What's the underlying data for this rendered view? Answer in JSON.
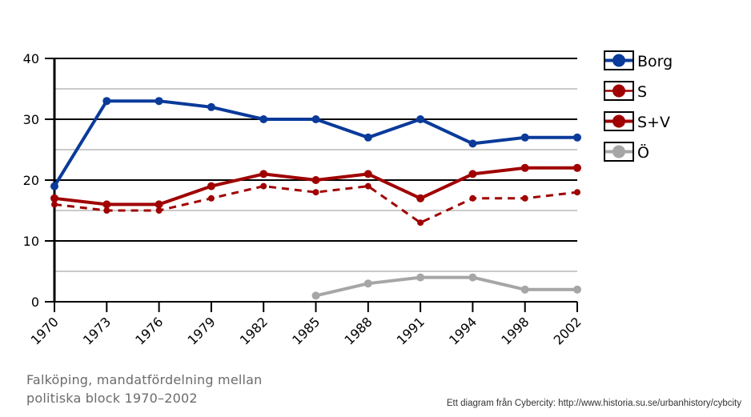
{
  "chart_data": {
    "type": "line",
    "title": "",
    "xlabel": "",
    "ylabel": "",
    "categories": [
      "1970",
      "1973",
      "1976",
      "1979",
      "1982",
      "1985",
      "1988",
      "1991",
      "1994",
      "1998",
      "2002"
    ],
    "ylim": [
      0,
      40
    ],
    "yticks": [
      0,
      10,
      20,
      30,
      40
    ],
    "grid": true,
    "legend_position": "right",
    "series": [
      {
        "name": "Borg",
        "color": "#0a3a9a",
        "dashed": false,
        "values": [
          19,
          33,
          33,
          32,
          30,
          30,
          27,
          30,
          26,
          27,
          27
        ]
      },
      {
        "name": "S",
        "color": "#a00000",
        "dashed": true,
        "values": [
          16,
          15,
          15,
          17,
          19,
          18,
          19,
          13,
          17,
          17,
          18
        ]
      },
      {
        "name": "S+V",
        "color": "#a00000",
        "dashed": false,
        "values": [
          17,
          16,
          16,
          19,
          21,
          20,
          21,
          17,
          21,
          22,
          22
        ]
      },
      {
        "name": "Ö",
        "color": "#a6a6a6",
        "dashed": false,
        "values": [
          null,
          null,
          null,
          null,
          null,
          1,
          3,
          4,
          4,
          2,
          2
        ]
      }
    ]
  },
  "caption": {
    "line1": "Falköping, mandatfördelning mellan",
    "line2": "politiska block 1970–2002"
  },
  "credit": "Ett diagram från Cybercity: http://www.historia.su.se/urbanhistory/cybcity"
}
